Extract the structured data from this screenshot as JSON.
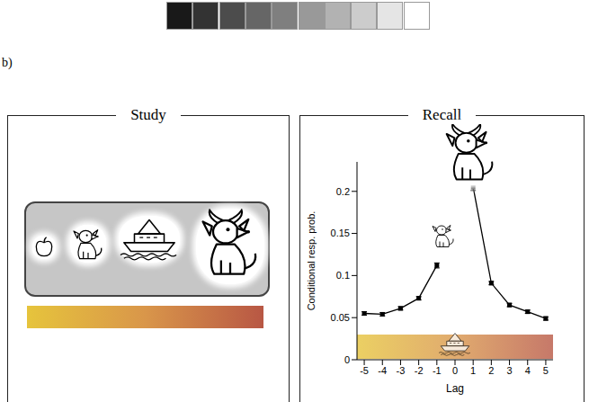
{
  "panel_label": "b)",
  "panels": [
    {
      "title": "Study"
    },
    {
      "title": "Recall"
    }
  ],
  "chart_data": {
    "type": "line",
    "x": [
      -5,
      -4,
      -3,
      -2,
      -1,
      0,
      1,
      2,
      3,
      4,
      5
    ],
    "values": [
      0.055,
      0.054,
      0.061,
      0.073,
      0.112,
      null,
      0.205,
      0.091,
      0.065,
      0.057,
      0.049
    ],
    "errors": [
      0.002,
      0.002,
      0.002,
      0.002,
      0.003,
      null,
      0.004,
      0.002,
      0.002,
      0.002,
      0.002
    ],
    "xlim": [
      -5.4,
      5.4
    ],
    "xticks": [
      -5,
      -4,
      -3,
      -2,
      -1,
      0,
      1,
      2,
      3,
      4,
      5
    ],
    "ylim": [
      0,
      0.235
    ],
    "yticks": [
      0,
      0.05,
      0.1,
      0.15,
      0.2
    ],
    "x_label": "Lag",
    "y_label": "Conditional resp. prob.",
    "color": "#000000",
    "marker": "square",
    "line_style": "solid",
    "grid": false
  }
}
